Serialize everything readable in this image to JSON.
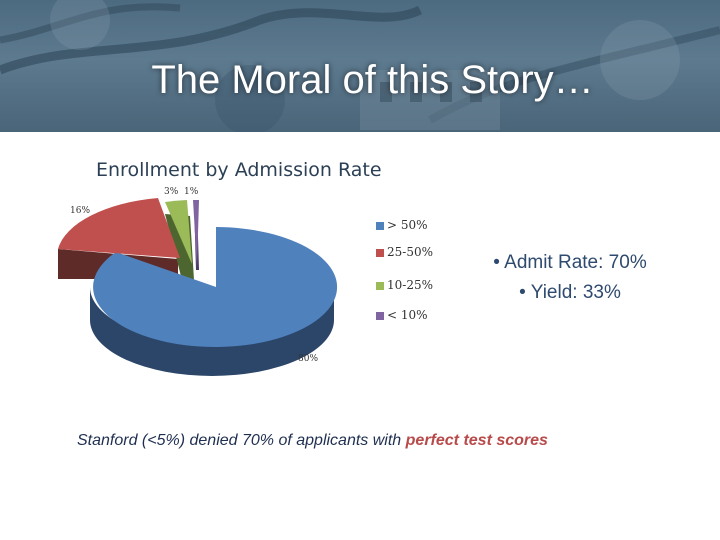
{
  "slide": {
    "title": "The Moral of this Story…",
    "bullets": [
      "• Admit Rate: 70%",
      "• Yield: 33%"
    ],
    "footnote": {
      "prefix": "Stanford (<5%) denied 70% of applicants with ",
      "highlight": "perfect test scores"
    }
  },
  "colors": {
    "header": "#4c6a80",
    "bullet_text": "#2e4a6e",
    "accent_text": "#b84a4a"
  },
  "chart_data": {
    "type": "pie",
    "title": "Enrollment by Admission Rate",
    "style": "3d-exploded",
    "legend_position": "right",
    "categories": [
      "> 50%",
      "25-50%",
      "10-25%",
      "< 10%"
    ],
    "values": [
      80,
      16,
      3,
      1
    ],
    "labels": [
      "80%",
      "16%",
      "3%",
      "1%"
    ],
    "colors": [
      "#4f81bd",
      "#c0504d",
      "#9bbb59",
      "#8064a2"
    ]
  }
}
